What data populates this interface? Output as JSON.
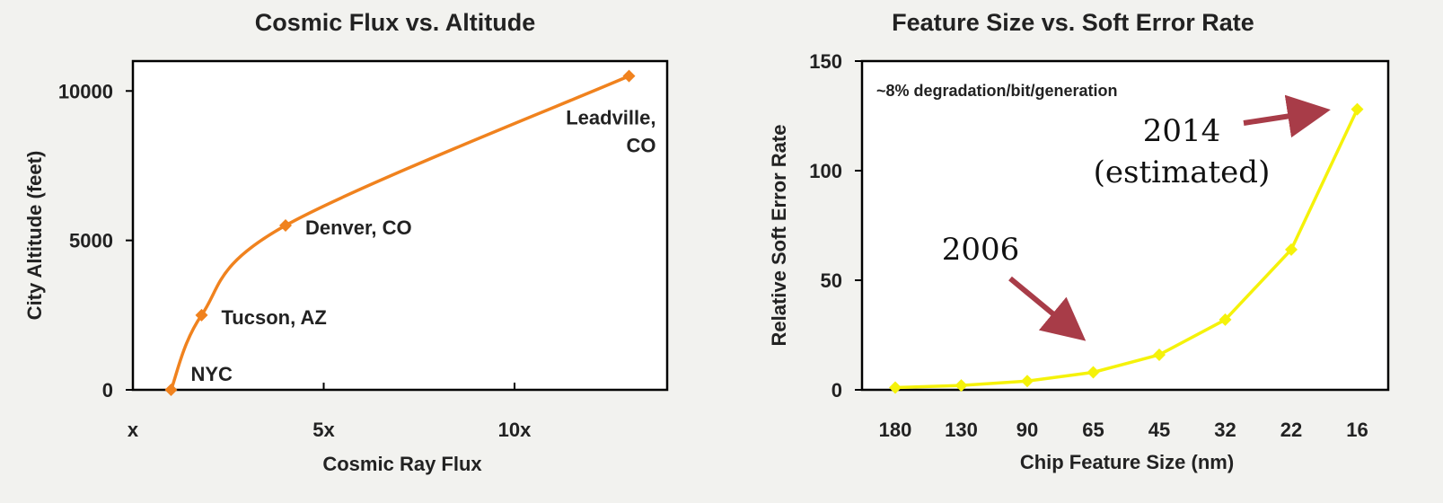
{
  "colors": {
    "background": "#f2f2ef",
    "series_left": "#f0821e",
    "series_right": "#f5f20a",
    "arrow": "#a83c48",
    "axis": "#000000"
  },
  "chart_data": [
    {
      "type": "line",
      "title": "Cosmic Flux vs. Altitude",
      "xlabel": "Cosmic Ray Flux",
      "ylabel": "City Altitude (feet)",
      "x_ticks": [
        "x",
        "5x",
        "10x"
      ],
      "x_tick_values": [
        0,
        5,
        10
      ],
      "y_ticks": [
        "0",
        "5000",
        "10000"
      ],
      "y_tick_values": [
        0,
        5000,
        10000
      ],
      "xlim": [
        0,
        14
      ],
      "ylim": [
        0,
        11000
      ],
      "grid": false,
      "series": [
        {
          "x": [
            1,
            1.8,
            4,
            13
          ],
          "y": [
            0,
            2500,
            5500,
            10500
          ],
          "labels": [
            "NYC",
            "Tucson, AZ",
            "Denver, CO",
            "Leadville,\nCO"
          ]
        }
      ]
    },
    {
      "type": "line",
      "title": "Feature Size vs. Soft Error Rate",
      "xlabel": "Chip Feature Size (nm)",
      "ylabel": "Relative Soft Error Rate",
      "categories": [
        "180",
        "130",
        "90",
        "65",
        "45",
        "32",
        "22",
        "16"
      ],
      "y_ticks": [
        "0",
        "50",
        "100",
        "150"
      ],
      "y_tick_values": [
        0,
        50,
        100,
        150
      ],
      "ylim": [
        0,
        150
      ],
      "grid": false,
      "series": [
        {
          "values": [
            1,
            2,
            4,
            8,
            16,
            32,
            64,
            128
          ]
        }
      ],
      "annotations": {
        "note": "~8% degradation/bit/generation",
        "year_2006": "2006",
        "year_2014": "2014",
        "estimated": "(estimated)"
      }
    }
  ]
}
